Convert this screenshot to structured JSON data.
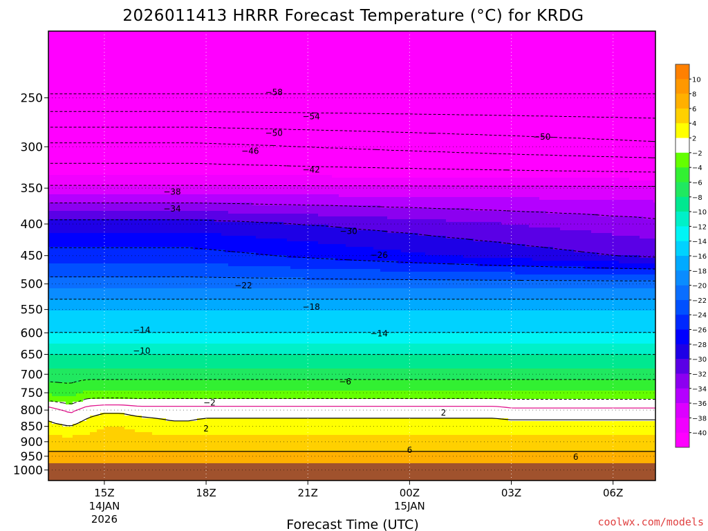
{
  "chart_data": {
    "type": "heatmap",
    "title": "2026011413 HRRR Forecast Temperature (°C) for KRDG",
    "xlabel": "Forecast Time (UTC)",
    "ylabel": "",
    "y_scale": "log",
    "y_inverted": true,
    "ylim": [
      1040,
      195
    ],
    "xlim": [
      13.35,
      31.25
    ],
    "x_unit": "hour UTC 14JAN2026 (24 = 00Z 15JAN)",
    "y_ticks": [
      250,
      300,
      350,
      400,
      450,
      500,
      550,
      600,
      650,
      700,
      750,
      800,
      850,
      900,
      950,
      1000
    ],
    "x_ticks": [
      {
        "x": 15,
        "label": "15Z",
        "sub1": "14JAN",
        "sub2": "2026"
      },
      {
        "x": 18,
        "label": "18Z",
        "sub1": "",
        "sub2": ""
      },
      {
        "x": 21,
        "label": "21Z",
        "sub1": "",
        "sub2": ""
      },
      {
        "x": 24,
        "label": "00Z",
        "sub1": "15JAN",
        "sub2": ""
      },
      {
        "x": 27,
        "label": "03Z",
        "sub1": "",
        "sub2": ""
      },
      {
        "x": 30,
        "label": "06Z",
        "sub1": "",
        "sub2": ""
      }
    ],
    "grid": true,
    "surface_pressure": 975,
    "surface_color": "#a0522d",
    "colorbar": {
      "labels": [
        "10",
        "8",
        "6",
        "4",
        "2",
        "−2",
        "−4",
        "−6",
        "−8",
        "−10",
        "−12",
        "−14",
        "−16",
        "−18",
        "−20",
        "−22",
        "−24",
        "−26",
        "−28",
        "−30",
        "−32",
        "−34",
        "−36",
        "−38",
        "−40"
      ],
      "bands": [
        {
          "min": 10,
          "max": 12,
          "color": "#ff8000"
        },
        {
          "min": 8,
          "max": 10,
          "color": "#ff9800"
        },
        {
          "min": 6,
          "max": 8,
          "color": "#ffb000"
        },
        {
          "min": 4,
          "max": 6,
          "color": "#ffd000"
        },
        {
          "min": 2,
          "max": 4,
          "color": "#ffff00"
        },
        {
          "min": -2,
          "max": 2,
          "color": "#ffffff"
        },
        {
          "min": -4,
          "max": -2,
          "color": "#64ff00"
        },
        {
          "min": -6,
          "max": -4,
          "color": "#32f032"
        },
        {
          "min": -8,
          "max": -6,
          "color": "#20e860"
        },
        {
          "min": -10,
          "max": -8,
          "color": "#00e890"
        },
        {
          "min": -12,
          "max": -10,
          "color": "#00f0c8"
        },
        {
          "min": -14,
          "max": -12,
          "color": "#00f5f5"
        },
        {
          "min": -16,
          "max": -14,
          "color": "#00d2ff"
        },
        {
          "min": -18,
          "max": -16,
          "color": "#00aaff"
        },
        {
          "min": -20,
          "max": -18,
          "color": "#0a8cff"
        },
        {
          "min": -22,
          "max": -20,
          "color": "#0a6eff"
        },
        {
          "min": -24,
          "max": -22,
          "color": "#0050ff"
        },
        {
          "min": -26,
          "max": -24,
          "color": "#0028ff"
        },
        {
          "min": -28,
          "max": -26,
          "color": "#0000ff"
        },
        {
          "min": -30,
          "max": -28,
          "color": "#1e00e6"
        },
        {
          "min": -32,
          "max": -30,
          "color": "#5a00e6"
        },
        {
          "min": -34,
          "max": -32,
          "color": "#8c00f0"
        },
        {
          "min": -36,
          "max": -34,
          "color": "#b400ff"
        },
        {
          "min": -38,
          "max": -36,
          "color": "#dc00ff"
        },
        {
          "min": -40,
          "max": -38,
          "color": "#f000ff"
        },
        {
          "min": -99,
          "max": -40,
          "color": "#ff00ff"
        }
      ]
    },
    "times": [
      13.35,
      14.0,
      14.5,
      15.0,
      15.5,
      16.0,
      16.5,
      17.0,
      17.5,
      18.0,
      18.5,
      19.0,
      19.5,
      20.0,
      20.5,
      21.0,
      21.5,
      22.0,
      22.5,
      23.0,
      23.5,
      24.0,
      24.5,
      25.0,
      25.5,
      26.0,
      26.5,
      27.0,
      27.5,
      28.0,
      28.5,
      29.0,
      29.5,
      30.0,
      30.5,
      31.25
    ],
    "profile_levels": [
      1000,
      950,
      900,
      850,
      800,
      750,
      700,
      650,
      600,
      550,
      500,
      450,
      400,
      350,
      300,
      250,
      200
    ],
    "temperature_profiles_at_times": [
      [
        7,
        6.5,
        5,
        2.5,
        1.0,
        -4.5,
        -7,
        -10,
        -14,
        -16,
        -21,
        -25.0,
        -29.0,
        -37.5,
        -45.0,
        -57.5,
        -65
      ],
      [
        7,
        6.5,
        5,
        2.0,
        -0.5,
        -5.0,
        -7,
        -10,
        -14,
        -16,
        -21,
        -25.0,
        -29.0,
        -37.5,
        -45.0,
        -57.5,
        -65
      ],
      [
        7,
        6.5,
        5,
        3.0,
        1.0,
        -3.5,
        -7,
        -10,
        -14,
        -16,
        -21,
        -25.0,
        -29.0,
        -37.5,
        -45.0,
        -57.5,
        -65
      ],
      [
        7,
        6.5,
        5,
        4.0,
        1.5,
        -3.5,
        -7,
        -10,
        -14,
        -16,
        -21,
        -25.0,
        -29.0,
        -37.5,
        -45.0,
        -57.5,
        -65
      ],
      [
        7,
        6.5,
        5,
        4.0,
        1.5,
        -3.5,
        -7,
        -10,
        -14,
        -16,
        -21,
        -25.0,
        -29.0,
        -37.5,
        -45.0,
        -57.5,
        -65
      ],
      [
        7,
        6.5,
        5,
        3.5,
        1.0,
        -3.5,
        -7,
        -10,
        -14,
        -16,
        -21,
        -25.0,
        -29.0,
        -37.5,
        -45.0,
        -57.5,
        -65
      ],
      [
        7,
        6.5,
        5,
        3.0,
        1.0,
        -3.5,
        -7,
        -10,
        -14,
        -16,
        -21,
        -25.0,
        -29.0,
        -37.5,
        -45.0,
        -57.5,
        -65
      ],
      [
        7,
        6.5,
        5,
        2.5,
        1.0,
        -3.5,
        -7,
        -10,
        -14,
        -16,
        -21,
        -25.0,
        -29.0,
        -37.5,
        -45.0,
        -57.5,
        -65
      ],
      [
        7,
        6.5,
        5,
        2.5,
        1.0,
        -3.5,
        -7,
        -10,
        -14,
        -16,
        -21,
        -25.0,
        -29.0,
        -37.5,
        -45.0,
        -57.5,
        -65
      ],
      [
        7,
        6.5,
        5,
        3.0,
        1.0,
        -3.5,
        -7,
        -10,
        -14,
        -16,
        -21,
        -25.2,
        -29.1,
        -37.5,
        -45.1,
        -57.5,
        -65
      ],
      [
        7,
        6.5,
        5,
        3.0,
        1.0,
        -3.5,
        -7,
        -10,
        -14,
        -16,
        -21,
        -25.4,
        -29.3,
        -37.5,
        -45.3,
        -57.5,
        -65
      ],
      [
        7,
        6.5,
        5,
        3.0,
        1.0,
        -3.5,
        -7,
        -10,
        -14,
        -16,
        -21,
        -25.6,
        -29.4,
        -37.5,
        -45.4,
        -57.5,
        -65
      ],
      [
        7,
        6.5,
        5,
        3.0,
        1.0,
        -3.5,
        -7,
        -10,
        -14,
        -16,
        -21,
        -25.8,
        -29.6,
        -37.5,
        -45.6,
        -57.5,
        -65
      ],
      [
        7,
        6.5,
        5,
        3.0,
        1.0,
        -3.5,
        -7,
        -10,
        -14,
        -16,
        -21,
        -26.0,
        -29.8,
        -37.5,
        -45.7,
        -57.5,
        -65
      ],
      [
        7,
        6.5,
        5,
        3.0,
        1.0,
        -3.5,
        -7,
        -10,
        -14,
        -16,
        -21,
        -26.2,
        -29.9,
        -37.5,
        -45.9,
        -57.5,
        -65
      ],
      [
        7,
        6.5,
        5,
        3.0,
        1.0,
        -3.5,
        -7,
        -10,
        -14,
        -16,
        -21,
        -26.4,
        -30.1,
        -37.5,
        -46.0,
        -57.5,
        -65
      ],
      [
        7,
        6.5,
        5,
        3.0,
        1.0,
        -3.5,
        -7,
        -10,
        -14,
        -16,
        -21,
        -26.6,
        -30.2,
        -37.5,
        -46.2,
        -57.5,
        -65
      ],
      [
        7,
        6.5,
        5,
        3.0,
        1.0,
        -3.5,
        -7,
        -10,
        -14,
        -16,
        -21,
        -26.8,
        -30.4,
        -37.5,
        -46.3,
        -57.5,
        -65
      ],
      [
        7,
        6.5,
        5,
        3.0,
        1.0,
        -3.5,
        -7,
        -10,
        -14,
        -16,
        -21,
        -27.0,
        -30.6,
        -37.5,
        -46.5,
        -57.5,
        -65
      ],
      [
        7,
        6.5,
        5,
        3.0,
        1.0,
        -3.5,
        -7,
        -10,
        -14,
        -16,
        -21,
        -27.2,
        -30.7,
        -37.5,
        -46.6,
        -57.5,
        -65
      ],
      [
        7,
        6.5,
        5,
        3.0,
        1.0,
        -3.5,
        -7,
        -10,
        -14,
        -16,
        -21,
        -27.4,
        -30.9,
        -37.5,
        -46.8,
        -57.5,
        -65
      ],
      [
        7,
        6.5,
        5,
        3.0,
        1.0,
        -3.5,
        -7,
        -10,
        -14,
        -16,
        -21,
        -27.6,
        -31.0,
        -37.5,
        -46.9,
        -57.5,
        -65
      ],
      [
        7,
        6.5,
        5,
        3.0,
        1.0,
        -3.5,
        -7,
        -10,
        -14,
        -16,
        -21,
        -27.8,
        -31.2,
        -37.5,
        -47.1,
        -57.5,
        -65
      ],
      [
        7,
        6.5,
        5,
        3.0,
        1.0,
        -3.5,
        -7,
        -10,
        -14,
        -16,
        -21,
        -28.0,
        -31.4,
        -37.5,
        -47.2,
        -57.5,
        -65
      ],
      [
        7,
        6.5,
        5,
        3.0,
        1.0,
        -3.5,
        -7,
        -10,
        -14,
        -16,
        -21,
        -28.2,
        -31.5,
        -37.5,
        -47.4,
        -57.5,
        -65
      ],
      [
        7,
        6.5,
        5,
        3.0,
        1.0,
        -3.5,
        -7,
        -10,
        -14,
        -16,
        -21,
        -28.4,
        -31.7,
        -37.5,
        -47.5,
        -57.5,
        -65
      ],
      [
        7,
        6.5,
        5,
        3.0,
        1.0,
        -3.5,
        -7,
        -10,
        -14,
        -16,
        -21,
        -28.6,
        -31.8,
        -37.5,
        -47.7,
        -57.5,
        -65
      ],
      [
        7,
        6.5,
        5,
        3.0,
        0.5,
        -3.5,
        -7,
        -10,
        -14,
        -16,
        -21,
        -28.8,
        -32.0,
        -37.5,
        -47.8,
        -57.5,
        -65
      ],
      [
        7,
        6.5,
        5,
        3.0,
        0.5,
        -3.5,
        -7,
        -10,
        -14,
        -16,
        -21,
        -29.0,
        -32.2,
        -37.5,
        -48.0,
        -57.5,
        -65
      ],
      [
        7,
        6.5,
        5,
        3.0,
        0.5,
        -3.5,
        -7,
        -10,
        -14,
        -16,
        -21,
        -29.2,
        -32.3,
        -37.5,
        -48.1,
        -57.5,
        -65
      ],
      [
        7,
        6.5,
        5,
        3.0,
        0.5,
        -3.5,
        -7,
        -10,
        -14,
        -16,
        -21,
        -29.4,
        -32.5,
        -37.5,
        -48.3,
        -57.5,
        -65
      ],
      [
        7,
        6.5,
        5,
        3.0,
        0.5,
        -3.5,
        -7,
        -10,
        -14,
        -16,
        -21,
        -29.6,
        -32.6,
        -37.5,
        -48.4,
        -57.5,
        -65
      ],
      [
        7,
        6.5,
        5,
        3.0,
        0.5,
        -3.5,
        -7,
        -10,
        -14,
        -16,
        -21,
        -29.8,
        -32.8,
        -37.5,
        -48.6,
        -57.5,
        -65
      ],
      [
        7,
        6.5,
        5,
        3.0,
        0.5,
        -3.5,
        -7,
        -10,
        -14,
        -16,
        -21,
        -30.0,
        -33.0,
        -37.5,
        -48.7,
        -57.5,
        -65
      ],
      [
        7,
        6.5,
        5,
        3.0,
        0.5,
        -3.5,
        -7,
        -10,
        -14,
        -16,
        -21,
        -30.2,
        -33.1,
        -37.5,
        -48.9,
        -57.5,
        -65
      ],
      [
        7,
        6.5,
        5,
        3.0,
        0.5,
        -3.5,
        -7,
        -10,
        -14,
        -16,
        -21,
        -30.5,
        -33.4,
        -37.5,
        -49.1,
        -57.5,
        -65
      ]
    ],
    "contours": {
      "dashed_levels": [
        -58,
        -54,
        -50,
        -46,
        -42,
        -38,
        -34,
        -30,
        -26,
        -22,
        -18,
        -14,
        -10,
        -6,
        -2
      ],
      "solid_levels": [
        2,
        6
      ],
      "zero_line_color": "#e0148c"
    },
    "contour_labels": [
      {
        "text": "−58",
        "x": 20.0,
        "p": 245
      },
      {
        "text": "−54",
        "x": 21.1,
        "p": 268
      },
      {
        "text": "−50",
        "x": 20.0,
        "p": 285
      },
      {
        "text": "−50",
        "x": 27.9,
        "p": 289
      },
      {
        "text": "−46",
        "x": 19.3,
        "p": 305
      },
      {
        "text": "−42",
        "x": 21.1,
        "p": 327
      },
      {
        "text": "−38",
        "x": 17.0,
        "p": 355
      },
      {
        "text": "−34",
        "x": 17.0,
        "p": 378
      },
      {
        "text": "−30",
        "x": 22.2,
        "p": 411
      },
      {
        "text": "−26",
        "x": 23.1,
        "p": 449
      },
      {
        "text": "−22",
        "x": 19.1,
        "p": 503
      },
      {
        "text": "−18",
        "x": 21.1,
        "p": 545
      },
      {
        "text": "−14",
        "x": 16.1,
        "p": 594
      },
      {
        "text": "−14",
        "x": 23.1,
        "p": 602
      },
      {
        "text": "−10",
        "x": 16.1,
        "p": 642
      },
      {
        "text": "−6",
        "x": 22.1,
        "p": 720
      },
      {
        "text": "−2",
        "x": 18.1,
        "p": 778
      },
      {
        "text": "2",
        "x": 18.0,
        "p": 857
      },
      {
        "text": "2",
        "x": 25.0,
        "p": 808
      },
      {
        "text": "6",
        "x": 24.0,
        "p": 928
      },
      {
        "text": "6",
        "x": 28.9,
        "p": 953
      }
    ]
  },
  "credit": "coolwx.com/models"
}
